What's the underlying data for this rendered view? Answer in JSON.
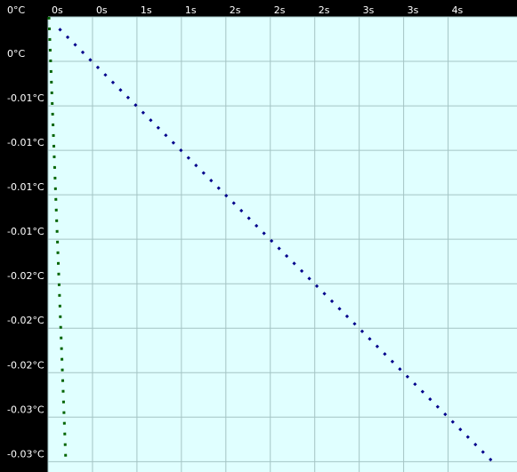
{
  "chart_data": {
    "type": "line",
    "xlim": [
      0,
      4.22
    ],
    "ylim": [
      0,
      -0.0307
    ],
    "xticks": [
      {
        "value": 0,
        "label": "0s"
      },
      {
        "value": 0.4,
        "label": "0s"
      },
      {
        "value": 0.8,
        "label": "1s"
      },
      {
        "value": 1.2,
        "label": "1s"
      },
      {
        "value": 1.6,
        "label": "2s"
      },
      {
        "value": 2.0,
        "label": "2s"
      },
      {
        "value": 2.4,
        "label": "2s"
      },
      {
        "value": 2.8,
        "label": "3s"
      },
      {
        "value": 3.2,
        "label": "3s"
      },
      {
        "value": 3.6,
        "label": "4s"
      }
    ],
    "yticks": [
      {
        "value": 0,
        "label": "0°C"
      },
      {
        "value": -0.003,
        "label": "0°C"
      },
      {
        "value": -0.006,
        "label": "-0.01°C"
      },
      {
        "value": -0.009,
        "label": "-0.01°C"
      },
      {
        "value": -0.012,
        "label": "-0.01°C"
      },
      {
        "value": -0.015,
        "label": "-0.01°C"
      },
      {
        "value": -0.018,
        "label": "-0.02°C"
      },
      {
        "value": -0.021,
        "label": "-0.02°C"
      },
      {
        "value": -0.024,
        "label": "-0.02°C"
      },
      {
        "value": -0.027,
        "label": "-0.03°C"
      },
      {
        "value": -0.03,
        "label": "-0.03°C"
      }
    ],
    "grid": true,
    "series": [
      {
        "color": "#006400",
        "x": [
          0.008,
          0.16
        ],
        "values": [
          0,
          -0.03
        ]
      },
      {
        "color": "#00008b",
        "x": [
          0.1,
          4.0
        ],
        "values": [
          -0.0008,
          -0.03
        ]
      }
    ]
  }
}
